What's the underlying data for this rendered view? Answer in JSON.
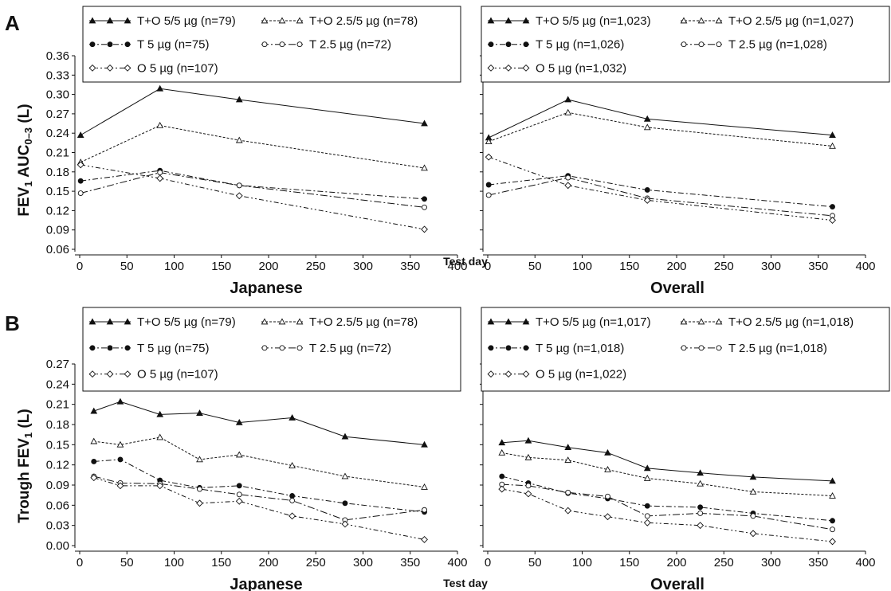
{
  "chart_data": [
    {
      "panel_label": "A",
      "type": "line",
      "subset": "Japanese",
      "xlabel": "Japanese",
      "ylabel": "FEV1 AUC0–3 (L)",
      "ylim": [
        0.06,
        0.36
      ],
      "yticks": [
        "0.06",
        "0.09",
        "0.12",
        "0.15",
        "0.18",
        "0.21",
        "0.24",
        "0.27",
        "0.30",
        "0.33",
        "0.36"
      ],
      "xlim": [
        0,
        400
      ],
      "xticks": [
        "0",
        "50",
        "100",
        "150",
        "200",
        "250",
        "300",
        "350",
        "400"
      ],
      "legend": "top",
      "grid": false,
      "series": [
        {
          "name": "T+O 5/5 µg (n=79)",
          "style": "ttri",
          "x": [
            1,
            85,
            169,
            365
          ],
          "y": [
            0.237,
            0.309,
            0.292,
            0.255
          ]
        },
        {
          "name": "T+O 2.5/5 µg (n=78)",
          "style": "ttri-open",
          "x": [
            1,
            85,
            169,
            365
          ],
          "y": [
            0.195,
            0.252,
            0.229,
            0.186
          ]
        },
        {
          "name": "T 5 µg (n=75)",
          "style": "tdot",
          "x": [
            1,
            85,
            169,
            365
          ],
          "y": [
            0.166,
            0.182,
            0.159,
            0.138
          ]
        },
        {
          "name": "T 2.5 µg (n=72)",
          "style": "tring",
          "x": [
            1,
            85,
            169,
            365
          ],
          "y": [
            0.147,
            0.179,
            0.159,
            0.125
          ]
        },
        {
          "name": "O 5 µg (n=107)",
          "style": "tdiamond",
          "x": [
            1,
            85,
            169,
            365
          ],
          "y": [
            0.191,
            0.17,
            0.143,
            0.091
          ]
        }
      ]
    },
    {
      "panel_label": "",
      "type": "line",
      "subset": "Overall",
      "xlabel": "Overall",
      "ylim": [
        0.06,
        0.36
      ],
      "xlim": [
        0,
        400
      ],
      "xticks": [
        "0",
        "50",
        "100",
        "150",
        "200",
        "250",
        "300",
        "350",
        "400"
      ],
      "legend": "top",
      "grid": false,
      "series": [
        {
          "name": "T+O 5/5 µg (n=1,023)",
          "style": "ttri",
          "x": [
            1,
            85,
            169,
            365
          ],
          "y": [
            0.233,
            0.292,
            0.262,
            0.237
          ]
        },
        {
          "name": "T+O 2.5/5 µg (n=1,027)",
          "style": "ttri-open",
          "x": [
            1,
            85,
            169,
            365
          ],
          "y": [
            0.227,
            0.272,
            0.249,
            0.22
          ]
        },
        {
          "name": "T 5 µg (n=1,026)",
          "style": "tdot",
          "x": [
            1,
            85,
            169,
            365
          ],
          "y": [
            0.16,
            0.174,
            0.152,
            0.126
          ]
        },
        {
          "name": "T 2.5 µg (n=1,028)",
          "style": "tring",
          "x": [
            1,
            85,
            169,
            365
          ],
          "y": [
            0.144,
            0.171,
            0.139,
            0.112
          ]
        },
        {
          "name": "O 5 µg (n=1,032)",
          "style": "tdiamond",
          "x": [
            1,
            85,
            169,
            365
          ],
          "y": [
            0.203,
            0.159,
            0.136,
            0.105
          ]
        }
      ]
    },
    {
      "panel_label": "B",
      "type": "line",
      "subset": "Japanese",
      "xlabel": "Japanese",
      "ylabel": "Trough FEV1 (L)",
      "ylim": [
        0.0,
        0.27
      ],
      "yticks": [
        "0.00",
        "0.03",
        "0.06",
        "0.09",
        "0.12",
        "0.15",
        "0.18",
        "0.21",
        "0.24",
        "0.27"
      ],
      "xlim": [
        0,
        400
      ],
      "xticks": [
        "0",
        "50",
        "100",
        "150",
        "200",
        "250",
        "300",
        "350",
        "400"
      ],
      "legend": "top",
      "grid": false,
      "series": [
        {
          "name": "T+O 5/5 µg (n=79)",
          "style": "ttri",
          "x": [
            15,
            43,
            85,
            127,
            169,
            225,
            281,
            365
          ],
          "y": [
            0.2,
            0.214,
            0.195,
            0.197,
            0.183,
            0.19,
            0.162,
            0.15
          ]
        },
        {
          "name": "T+O 2.5/5 µg (n=78)",
          "style": "ttri-open",
          "x": [
            15,
            43,
            85,
            127,
            169,
            225,
            281,
            365
          ],
          "y": [
            0.155,
            0.15,
            0.161,
            0.128,
            0.135,
            0.119,
            0.103,
            0.087
          ]
        },
        {
          "name": "T 5 µg (n=75)",
          "style": "tdot",
          "x": [
            15,
            43,
            85,
            127,
            169,
            225,
            281,
            365
          ],
          "y": [
            0.125,
            0.128,
            0.097,
            0.086,
            0.089,
            0.074,
            0.063,
            0.05
          ]
        },
        {
          "name": "T 2.5 µg (n=72)",
          "style": "tring",
          "x": [
            15,
            43,
            85,
            127,
            169,
            225,
            281,
            365
          ],
          "y": [
            0.103,
            0.093,
            0.092,
            0.084,
            0.076,
            0.067,
            0.038,
            0.053
          ]
        },
        {
          "name": "O 5 µg (n=107)",
          "style": "tdiamond",
          "x": [
            15,
            43,
            85,
            127,
            169,
            225,
            281,
            365
          ],
          "y": [
            0.101,
            0.089,
            0.089,
            0.063,
            0.066,
            0.044,
            0.032,
            0.009
          ]
        }
      ]
    },
    {
      "panel_label": "",
      "type": "line",
      "subset": "Overall",
      "xlabel": "Overall",
      "ylim": [
        0.0,
        0.27
      ],
      "xlim": [
        0,
        400
      ],
      "xticks": [
        "0",
        "50",
        "100",
        "150",
        "200",
        "250",
        "300",
        "350",
        "400"
      ],
      "legend": "top",
      "grid": false,
      "series": [
        {
          "name": "T+O 5/5 µg (n=1,017)",
          "style": "ttri",
          "x": [
            15,
            43,
            85,
            127,
            169,
            225,
            281,
            365
          ],
          "y": [
            0.153,
            0.156,
            0.146,
            0.138,
            0.115,
            0.108,
            0.102,
            0.096
          ]
        },
        {
          "name": "T+O 2.5/5 µg (n=1,018)",
          "style": "ttri-open",
          "x": [
            15,
            43,
            85,
            127,
            169,
            225,
            281,
            365
          ],
          "y": [
            0.138,
            0.131,
            0.127,
            0.113,
            0.1,
            0.092,
            0.08,
            0.074
          ]
        },
        {
          "name": "T 5 µg (n=1,018)",
          "style": "tdot",
          "x": [
            15,
            43,
            85,
            127,
            169,
            225,
            281,
            365
          ],
          "y": [
            0.103,
            0.093,
            0.078,
            0.07,
            0.059,
            0.057,
            0.048,
            0.037
          ]
        },
        {
          "name": "T 2.5 µg (n=1,018)",
          "style": "tring",
          "x": [
            15,
            43,
            85,
            127,
            169,
            225,
            281,
            365
          ],
          "y": [
            0.091,
            0.089,
            0.079,
            0.073,
            0.044,
            0.048,
            0.044,
            0.024
          ]
        },
        {
          "name": "O 5 µg (n=1,022)",
          "style": "tdiamond",
          "x": [
            15,
            43,
            85,
            127,
            169,
            225,
            281,
            365
          ],
          "y": [
            0.084,
            0.077,
            0.052,
            0.043,
            0.034,
            0.03,
            0.018,
            0.006
          ]
        }
      ]
    }
  ],
  "shared_xlabel": "Test day"
}
